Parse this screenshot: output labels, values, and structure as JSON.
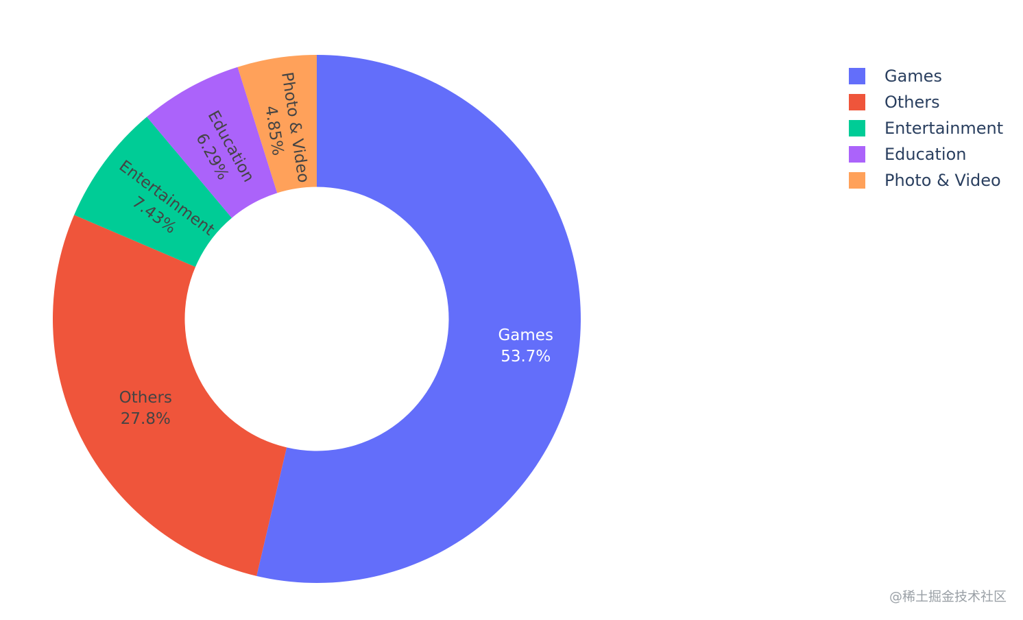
{
  "chart_data": {
    "type": "pie",
    "hole": 0.5,
    "direction": "clockwise",
    "labels": [
      "Games",
      "Others",
      "Entertainment",
      "Education",
      "Photo & Video"
    ],
    "values": [
      53.7,
      27.8,
      7.43,
      6.29,
      4.85
    ],
    "value_labels": [
      "53.7%",
      "27.8%",
      "7.43%",
      "6.29%",
      "4.85%"
    ],
    "colors": [
      "#636efa",
      "#ef553b",
      "#00cc96",
      "#ab63fa",
      "#ffa15a"
    ],
    "legend": {
      "position": "top-right",
      "entries": [
        "Games",
        "Others",
        "Entertainment",
        "Education",
        "Photo & Video"
      ]
    }
  },
  "watermark": "@稀土掘金技术社区"
}
